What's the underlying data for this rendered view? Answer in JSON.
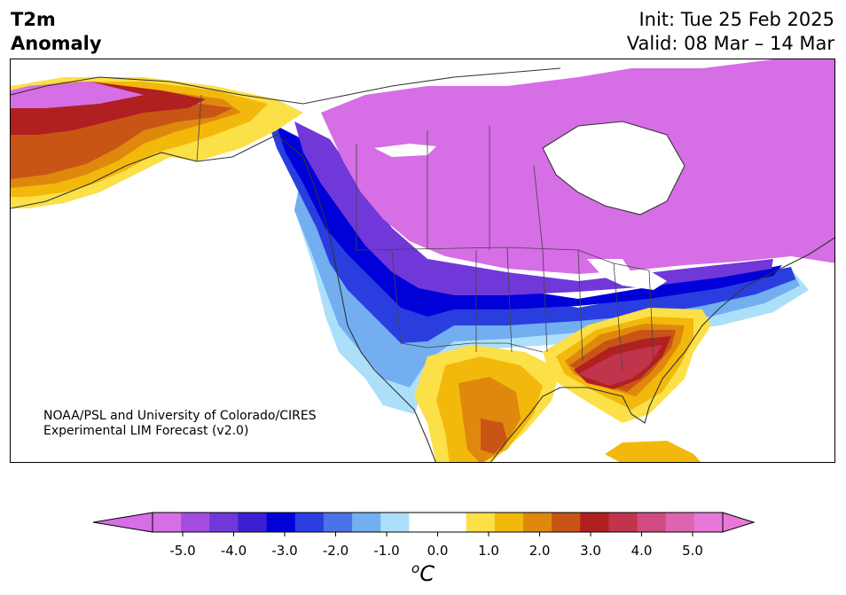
{
  "header": {
    "title_line1": "T2m",
    "title_line2": "Anomaly",
    "init": "Init: Tue 25 Feb 2025",
    "valid": "Valid: 08 Mar – 14 Mar"
  },
  "credit": {
    "line1": "NOAA/PSL and University of Colorado/CIRES",
    "line2": "Experimental LIM Forecast (v2.0)"
  },
  "colorbar": {
    "unit_main": "C",
    "unit_sup": "o",
    "ticks": [
      "-5.0",
      "-4.0",
      "-3.0",
      "-2.0",
      "-1.0",
      "0.0",
      "1.0",
      "2.0",
      "3.0",
      "4.0",
      "5.0"
    ],
    "colors": [
      "#d66ee6",
      "#a44ce0",
      "#7038d8",
      "#3a20d0",
      "#0000d8",
      "#2a3ee0",
      "#4a74e6",
      "#72aef0",
      "#ace0fa",
      "#ffffff",
      "#ffffff",
      "#fce048",
      "#f2b80c",
      "#e0880e",
      "#c85416",
      "#b02020",
      "#c0344c",
      "#d04c80",
      "#dc64b0",
      "#e878d8"
    ],
    "under_color": "#d66ee6",
    "over_color": "#e878d8"
  }
}
